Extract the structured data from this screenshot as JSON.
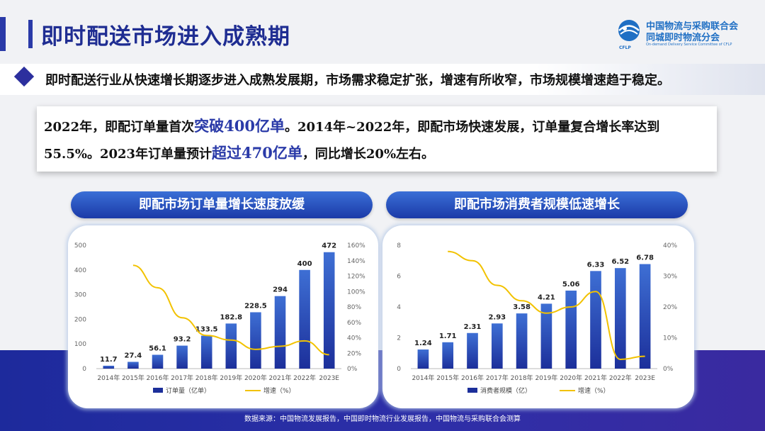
{
  "header": {
    "title": "即时配送市场进入成熟期"
  },
  "logo": {
    "line1": "中国物流与采购联合会",
    "line2": "同城即时物流分会",
    "line3": "On-demand Delivery Service Committee of CFLP",
    "abbr": "CFLP"
  },
  "intro": "即时配送行业从快速增长期逐步进入成熟发展期，市场需求稳定扩张，增速有所收窄，市场规模增速趋于稳定。",
  "card": {
    "l1_a": "2022年，即配订单量首次",
    "l1_hl": "突破400亿单",
    "l1_b": "。2014年~2022年，即配市场快速发展，订单量复合增长率达到",
    "l2_a": "55.5%。2023年订单量预计",
    "l2_hl": "超过470亿单",
    "l2_b": "，同比增长20%左右。"
  },
  "chart1_title": "即配市场订单量增长速度放缓",
  "chart2_title": "即配市场消费者规模低速增长",
  "source": "数据来源：中国物流发展报告，中国即时物流行业发展报告，中国物流与采购联合会测算",
  "colors": {
    "bar_top": "#3e6fd4",
    "bar_bottom": "#1c2f9a",
    "line": "#f2c200",
    "brand": "#1f2d92"
  },
  "chart_data": [
    {
      "type": "bar",
      "title": "即配市场订单量增长速度放缓",
      "categories": [
        "2014年",
        "2015年",
        "2016年",
        "2017年",
        "2018年",
        "2019年",
        "2020年",
        "2021年",
        "2022年",
        "2023E"
      ],
      "series": [
        {
          "name": "订单量（亿单）",
          "type": "bar",
          "values": [
            11.7,
            27.4,
            56.1,
            93.2,
            133.5,
            182.8,
            228.5,
            294,
            400,
            472
          ],
          "labels": [
            "11.7",
            "27.4",
            "56.1",
            "93.2",
            "133.5",
            "182.8",
            "228.5",
            "294",
            "400",
            "472"
          ]
        },
        {
          "name": "增速（%）",
          "type": "line",
          "axis": "right",
          "values": [
            null,
            134,
            105,
            66,
            43,
            37,
            25,
            29,
            36,
            18
          ]
        }
      ],
      "ylim": [
        0,
        500
      ],
      "yticks": [
        "0",
        "100",
        "200",
        "300",
        "400",
        "500"
      ],
      "y2lim": [
        0,
        160
      ],
      "y2ticks": [
        "0%",
        "20%",
        "40%",
        "60%",
        "80%",
        "100%",
        "120%",
        "140%",
        "160%"
      ]
    },
    {
      "type": "bar",
      "title": "即配市场消费者规模低速增长",
      "categories": [
        "2014年",
        "2015年",
        "2016年",
        "2017年",
        "2018年",
        "2019年",
        "2020年",
        "2021年",
        "2022年",
        "2023E"
      ],
      "series": [
        {
          "name": "消费者规模（亿）",
          "type": "bar",
          "values": [
            1.24,
            1.71,
            2.31,
            2.93,
            3.58,
            4.21,
            5.06,
            6.33,
            6.52,
            6.78
          ],
          "labels": [
            "1.24",
            "1.71",
            "2.31",
            "2.93",
            "3.58",
            "4.21",
            "5.06",
            "6.33",
            "6.52",
            "6.78"
          ]
        },
        {
          "name": "增速（%）",
          "type": "line",
          "axis": "right",
          "values": [
            null,
            38,
            35,
            27,
            22,
            18,
            20,
            25,
            3,
            4
          ]
        }
      ],
      "ylim": [
        0,
        8
      ],
      "yticks": [
        "0",
        "2",
        "4",
        "6",
        "8"
      ],
      "y2lim": [
        0,
        40
      ],
      "y2ticks": [
        "0%",
        "10%",
        "20%",
        "30%",
        "40%"
      ]
    }
  ]
}
